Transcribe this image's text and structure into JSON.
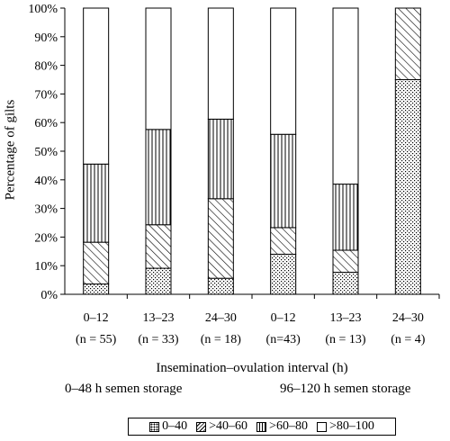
{
  "chart_data": {
    "type": "stacked-bar",
    "ylabel": "Percentage of gilts",
    "xlabel": "Insemination–ovulation interval (h)",
    "ylim": [
      0,
      100
    ],
    "yticks": [
      "0%",
      "10%",
      "20%",
      "30%",
      "40%",
      "50%",
      "60%",
      "70%",
      "80%",
      "90%",
      "100%"
    ],
    "categories": [
      {
        "label": "0–12",
        "n": "(n = 55)"
      },
      {
        "label": "13–23",
        "n": "(n = 33)"
      },
      {
        "label": "24–30",
        "n": "(n = 18)"
      },
      {
        "label": "0–12",
        "n": "(n=43)"
      },
      {
        "label": "13–23",
        "n": "(n = 13)"
      },
      {
        "label": "24–30",
        "n": "(n = 4)"
      }
    ],
    "groups": [
      "0–48 h semen storage",
      "96–120 h semen storage"
    ],
    "series": [
      {
        "name": "0–40",
        "pattern": "dots",
        "values": [
          3.6,
          9.1,
          5.6,
          14.0,
          7.7,
          75.0
        ]
      },
      {
        "name": ">40–60",
        "pattern": "diagonal",
        "values": [
          14.6,
          15.2,
          27.8,
          9.3,
          7.7,
          25.0
        ]
      },
      {
        "name": ">60–80",
        "pattern": "vertical",
        "values": [
          27.3,
          33.3,
          27.8,
          32.6,
          23.1,
          0
        ]
      },
      {
        "name": ">80–100",
        "pattern": "blank",
        "values": [
          54.5,
          42.4,
          38.8,
          44.1,
          61.5,
          0
        ]
      }
    ],
    "grid": false,
    "legend": "bottom"
  }
}
